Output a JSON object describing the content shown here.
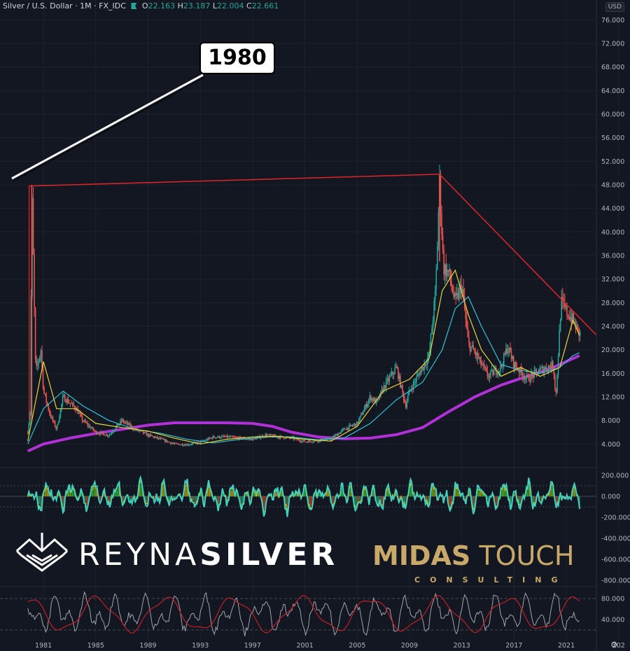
{
  "header": {
    "symbol": "Silver / U.S. Dollar · 1M · FX_IDC",
    "open_label": "O",
    "open": "22.163",
    "high_label": "H",
    "high": "23.187",
    "low_label": "L",
    "low": "22.004",
    "close_label": "C",
    "close": "22.661"
  },
  "currency_button": "USD",
  "annotation": "1980",
  "logos": {
    "reyna_light": "REYNA",
    "reyna_bold": "SILVER",
    "midas_bold": "MIDAS",
    "midas_light": "TOUCH",
    "midas_sub": "CONSULTING"
  },
  "colors": {
    "background": "#131722",
    "up": "#26a69a",
    "down": "#ef5350",
    "trendline": "#e0252a",
    "ma_fast": "#e6d63a",
    "ma_mid": "#33c2d6",
    "ma_slow": "#b031d6",
    "osc_teal": "#3fd0c0",
    "osc_yellow": "#d4c800",
    "rsi_gray": "#a0a3ab",
    "rsi_red": "#c21f27",
    "logo_gold": "#c8a96a"
  },
  "chart_data": {
    "type": "line",
    "x_ticks": [
      "1981",
      "1985",
      "1989",
      "1993",
      "1997",
      "2001",
      "2005",
      "2009",
      "2013",
      "2017",
      "2021",
      "202"
    ],
    "price_axis": {
      "ticks": [
        "76.000",
        "72.000",
        "68.000",
        "64.000",
        "60.000",
        "56.000",
        "52.000",
        "48.000",
        "44.000",
        "40.000",
        "36.000",
        "32.000",
        "28.000",
        "24.000",
        "20.000",
        "16.000",
        "12.000",
        "8.000",
        "4.000"
      ],
      "ylim": [
        0,
        77
      ]
    },
    "price_series": {
      "name": "",
      "x": [
        1979.8,
        1980.0,
        1980.1,
        1980.4,
        1980.8,
        1981.0,
        1981.5,
        1982.0,
        1982.5,
        1983.0,
        1983.5,
        1984.0,
        1985.0,
        1986.0,
        1987.0,
        1988.0,
        1989.0,
        1990.0,
        1991.0,
        1992.0,
        1993.0,
        1994.0,
        1995.0,
        1996.0,
        1997.0,
        1998.0,
        1999.0,
        2000.0,
        2001.0,
        2002.0,
        2003.0,
        2004.0,
        2005.0,
        2006.0,
        2006.5,
        2007.0,
        2008.0,
        2008.7,
        2009.0,
        2010.0,
        2010.5,
        2011.0,
        2011.3,
        2011.6,
        2012.0,
        2012.5,
        2013.0,
        2013.5,
        2014.0,
        2015.0,
        2016.0,
        2016.5,
        2017.0,
        2018.0,
        2019.0,
        2020.0,
        2020.2,
        2020.6,
        2021.0,
        2021.5,
        2022.0
      ],
      "values": [
        6.0,
        10.0,
        48.0,
        16.0,
        20.0,
        13.0,
        9.0,
        6.5,
        12.0,
        11.0,
        10.0,
        8.0,
        6.0,
        5.5,
        8.0,
        6.5,
        5.5,
        4.8,
        4.0,
        3.9,
        4.3,
        5.2,
        5.2,
        5.0,
        4.8,
        5.5,
        5.2,
        5.0,
        4.4,
        4.6,
        4.9,
        6.5,
        7.5,
        12.0,
        11.0,
        13.5,
        17.0,
        10.5,
        13.0,
        17.0,
        19.0,
        30.0,
        48.5,
        34.0,
        33.0,
        28.0,
        31.0,
        21.0,
        19.5,
        15.5,
        17.0,
        20.5,
        17.5,
        15.0,
        16.5,
        17.5,
        12.0,
        28.0,
        26.5,
        25.0,
        22.7
      ]
    },
    "moving_averages": [
      {
        "name": "",
        "x": [
          1979.8,
          1981.0,
          1982.0,
          1983.5,
          1985.0,
          1987.0,
          1989.0,
          1991.0,
          1993.0,
          1995.0,
          1997.0,
          1999.0,
          2001.0,
          2003.0,
          2005.0,
          2007.0,
          2009.0,
          2010.5,
          2011.5,
          2012.5,
          2013.5,
          2014.5,
          2016.0,
          2017.5,
          2019.0,
          2020.5,
          2021.5,
          2022.0
        ],
        "values": [
          4.5,
          18.0,
          10.0,
          10.0,
          7.5,
          6.8,
          6.2,
          5.0,
          4.0,
          4.8,
          5.2,
          5.3,
          4.8,
          4.5,
          7.0,
          13.0,
          15.0,
          18.5,
          30.0,
          33.5,
          26.0,
          20.0,
          15.5,
          17.0,
          15.5,
          17.0,
          25.0,
          22.5
        ]
      },
      {
        "name": "",
        "x": [
          1979.8,
          1981.0,
          1982.5,
          1984.0,
          1986.0,
          1988.0,
          1990.0,
          1992.0,
          1994.0,
          1996.0,
          1998.0,
          2000.0,
          2002.0,
          2004.0,
          2006.0,
          2008.0,
          2010.0,
          2011.5,
          2012.5,
          2013.5,
          2014.5,
          2016.0,
          2017.5,
          2019.0,
          2020.5,
          2021.5,
          2022.0
        ],
        "values": [
          4.0,
          10.0,
          13.0,
          10.5,
          8.0,
          6.5,
          5.8,
          4.8,
          4.2,
          4.8,
          5.2,
          5.2,
          4.7,
          5.0,
          7.5,
          11.5,
          14.5,
          20.0,
          27.0,
          29.0,
          24.0,
          17.5,
          16.5,
          16.0,
          17.0,
          19.0,
          19.5
        ]
      },
      {
        "name": "",
        "x": [
          1979.8,
          1981.0,
          1983.0,
          1985.0,
          1987.0,
          1989.0,
          1991.0,
          1993.0,
          1995.0,
          1997.0,
          1998.5,
          2000.0,
          2002.0,
          2004.0,
          2006.0,
          2008.0,
          2010.0,
          2012.0,
          2014.0,
          2016.0,
          2018.0,
          2020.0,
          2022.0
        ],
        "values": [
          2.8,
          4.0,
          5.0,
          5.8,
          6.5,
          7.2,
          7.6,
          7.6,
          7.6,
          7.5,
          7.0,
          6.0,
          5.2,
          4.9,
          5.0,
          5.6,
          6.8,
          9.5,
          12.0,
          14.0,
          15.5,
          17.0,
          19.0
        ]
      }
    ],
    "trendlines": [
      {
        "x": [
          1979.9,
          2011.3
        ],
        "values": [
          47.8,
          49.8
        ]
      },
      {
        "x": [
          2011.3,
          2023.3
        ],
        "values": [
          49.8,
          22.5
        ]
      }
    ],
    "oscillator_axis": {
      "ticks": [
        "200.000",
        "0.000",
        "-200.000",
        "-400.000",
        "-600.000",
        "-800.000"
      ],
      "ylim": [
        -860,
        260
      ]
    },
    "rsi_axis": {
      "ticks": [
        "80.000",
        "40.000"
      ],
      "ylim": [
        0,
        100
      ]
    },
    "xlim": [
      1979.6,
      2023.3
    ]
  }
}
